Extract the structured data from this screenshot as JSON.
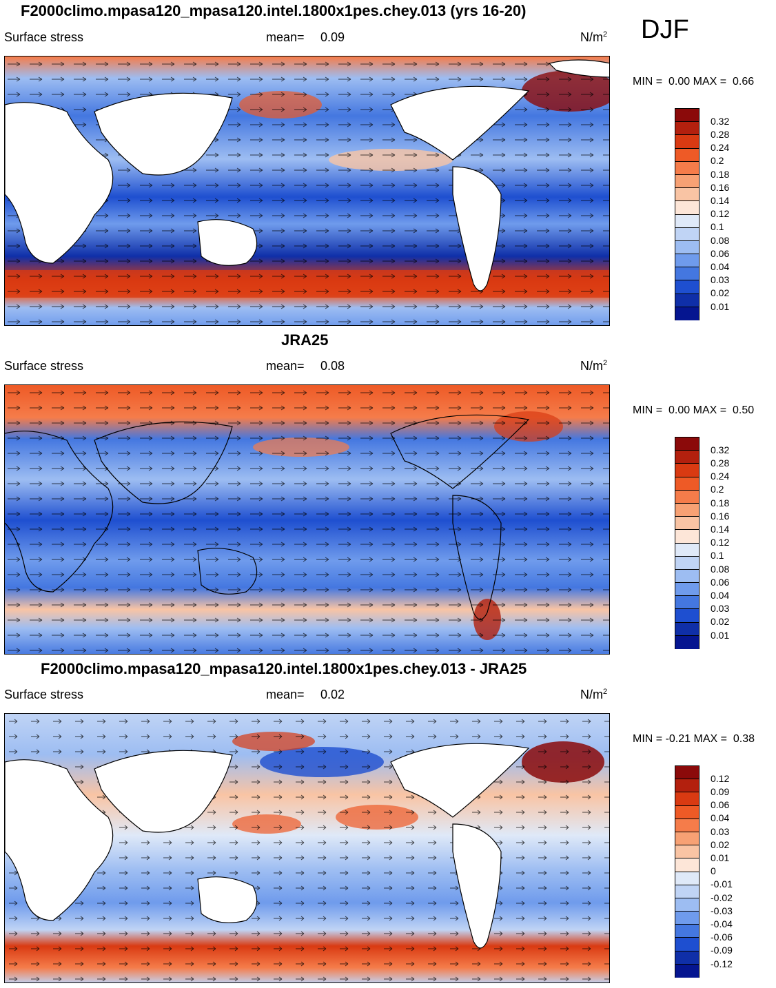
{
  "season": "DJF",
  "panels": [
    {
      "title": "F2000climo.mpasa120_mpasa120.intel.1800x1pes.chey.013 (yrs 16-20)",
      "variable": "Surface stress",
      "mean_label": "mean=",
      "mean_value": "0.09",
      "units_base": "N/m",
      "units_exp": "2",
      "min_label": "MIN =",
      "min_value": "0.00",
      "max_label": "MAX =",
      "max_value": "0.66",
      "colorbar_ticks": [
        "0.32",
        "0.28",
        "0.24",
        "0.2",
        "0.18",
        "0.16",
        "0.14",
        "0.12",
        "0.1",
        "0.08",
        "0.06",
        "0.04",
        "0.03",
        "0.02",
        "0.01"
      ]
    },
    {
      "title": "JRA25",
      "variable": "Surface stress",
      "mean_label": "mean=",
      "mean_value": "0.08",
      "units_base": "N/m",
      "units_exp": "2",
      "min_label": "MIN =",
      "min_value": "0.00",
      "max_label": "MAX =",
      "max_value": "0.50",
      "colorbar_ticks": [
        "0.32",
        "0.28",
        "0.24",
        "0.2",
        "0.18",
        "0.16",
        "0.14",
        "0.12",
        "0.1",
        "0.08",
        "0.06",
        "0.04",
        "0.03",
        "0.02",
        "0.01"
      ]
    },
    {
      "title": "F2000climo.mpasa120_mpasa120.intel.1800x1pes.chey.013 - JRA25",
      "variable": "Surface stress",
      "mean_label": "mean=",
      "mean_value": "0.02",
      "units_base": "N/m",
      "units_exp": "2",
      "min_label": "MIN =",
      "min_value": "-0.21",
      "max_label": "MAX =",
      "max_value": "0.38",
      "colorbar_ticks": [
        "0.12",
        "0.09",
        "0.06",
        "0.04",
        "0.03",
        "0.02",
        "0.01",
        "0",
        "-0.01",
        "-0.02",
        "-0.03",
        "-0.04",
        "-0.06",
        "-0.09",
        "-0.12"
      ]
    }
  ],
  "colors": {
    "seq": [
      "#8b0a0a",
      "#b3200e",
      "#d93a12",
      "#ee5a26",
      "#f57c4a",
      "#f7a174",
      "#f9c4a4",
      "#fde6d8",
      "#dfe9f8",
      "#c0d4f5",
      "#9dbdf2",
      "#6f9bec",
      "#4477e0",
      "#1e4fd0",
      "#0f2fa8",
      "#051590"
    ],
    "land": "#ffffff"
  }
}
